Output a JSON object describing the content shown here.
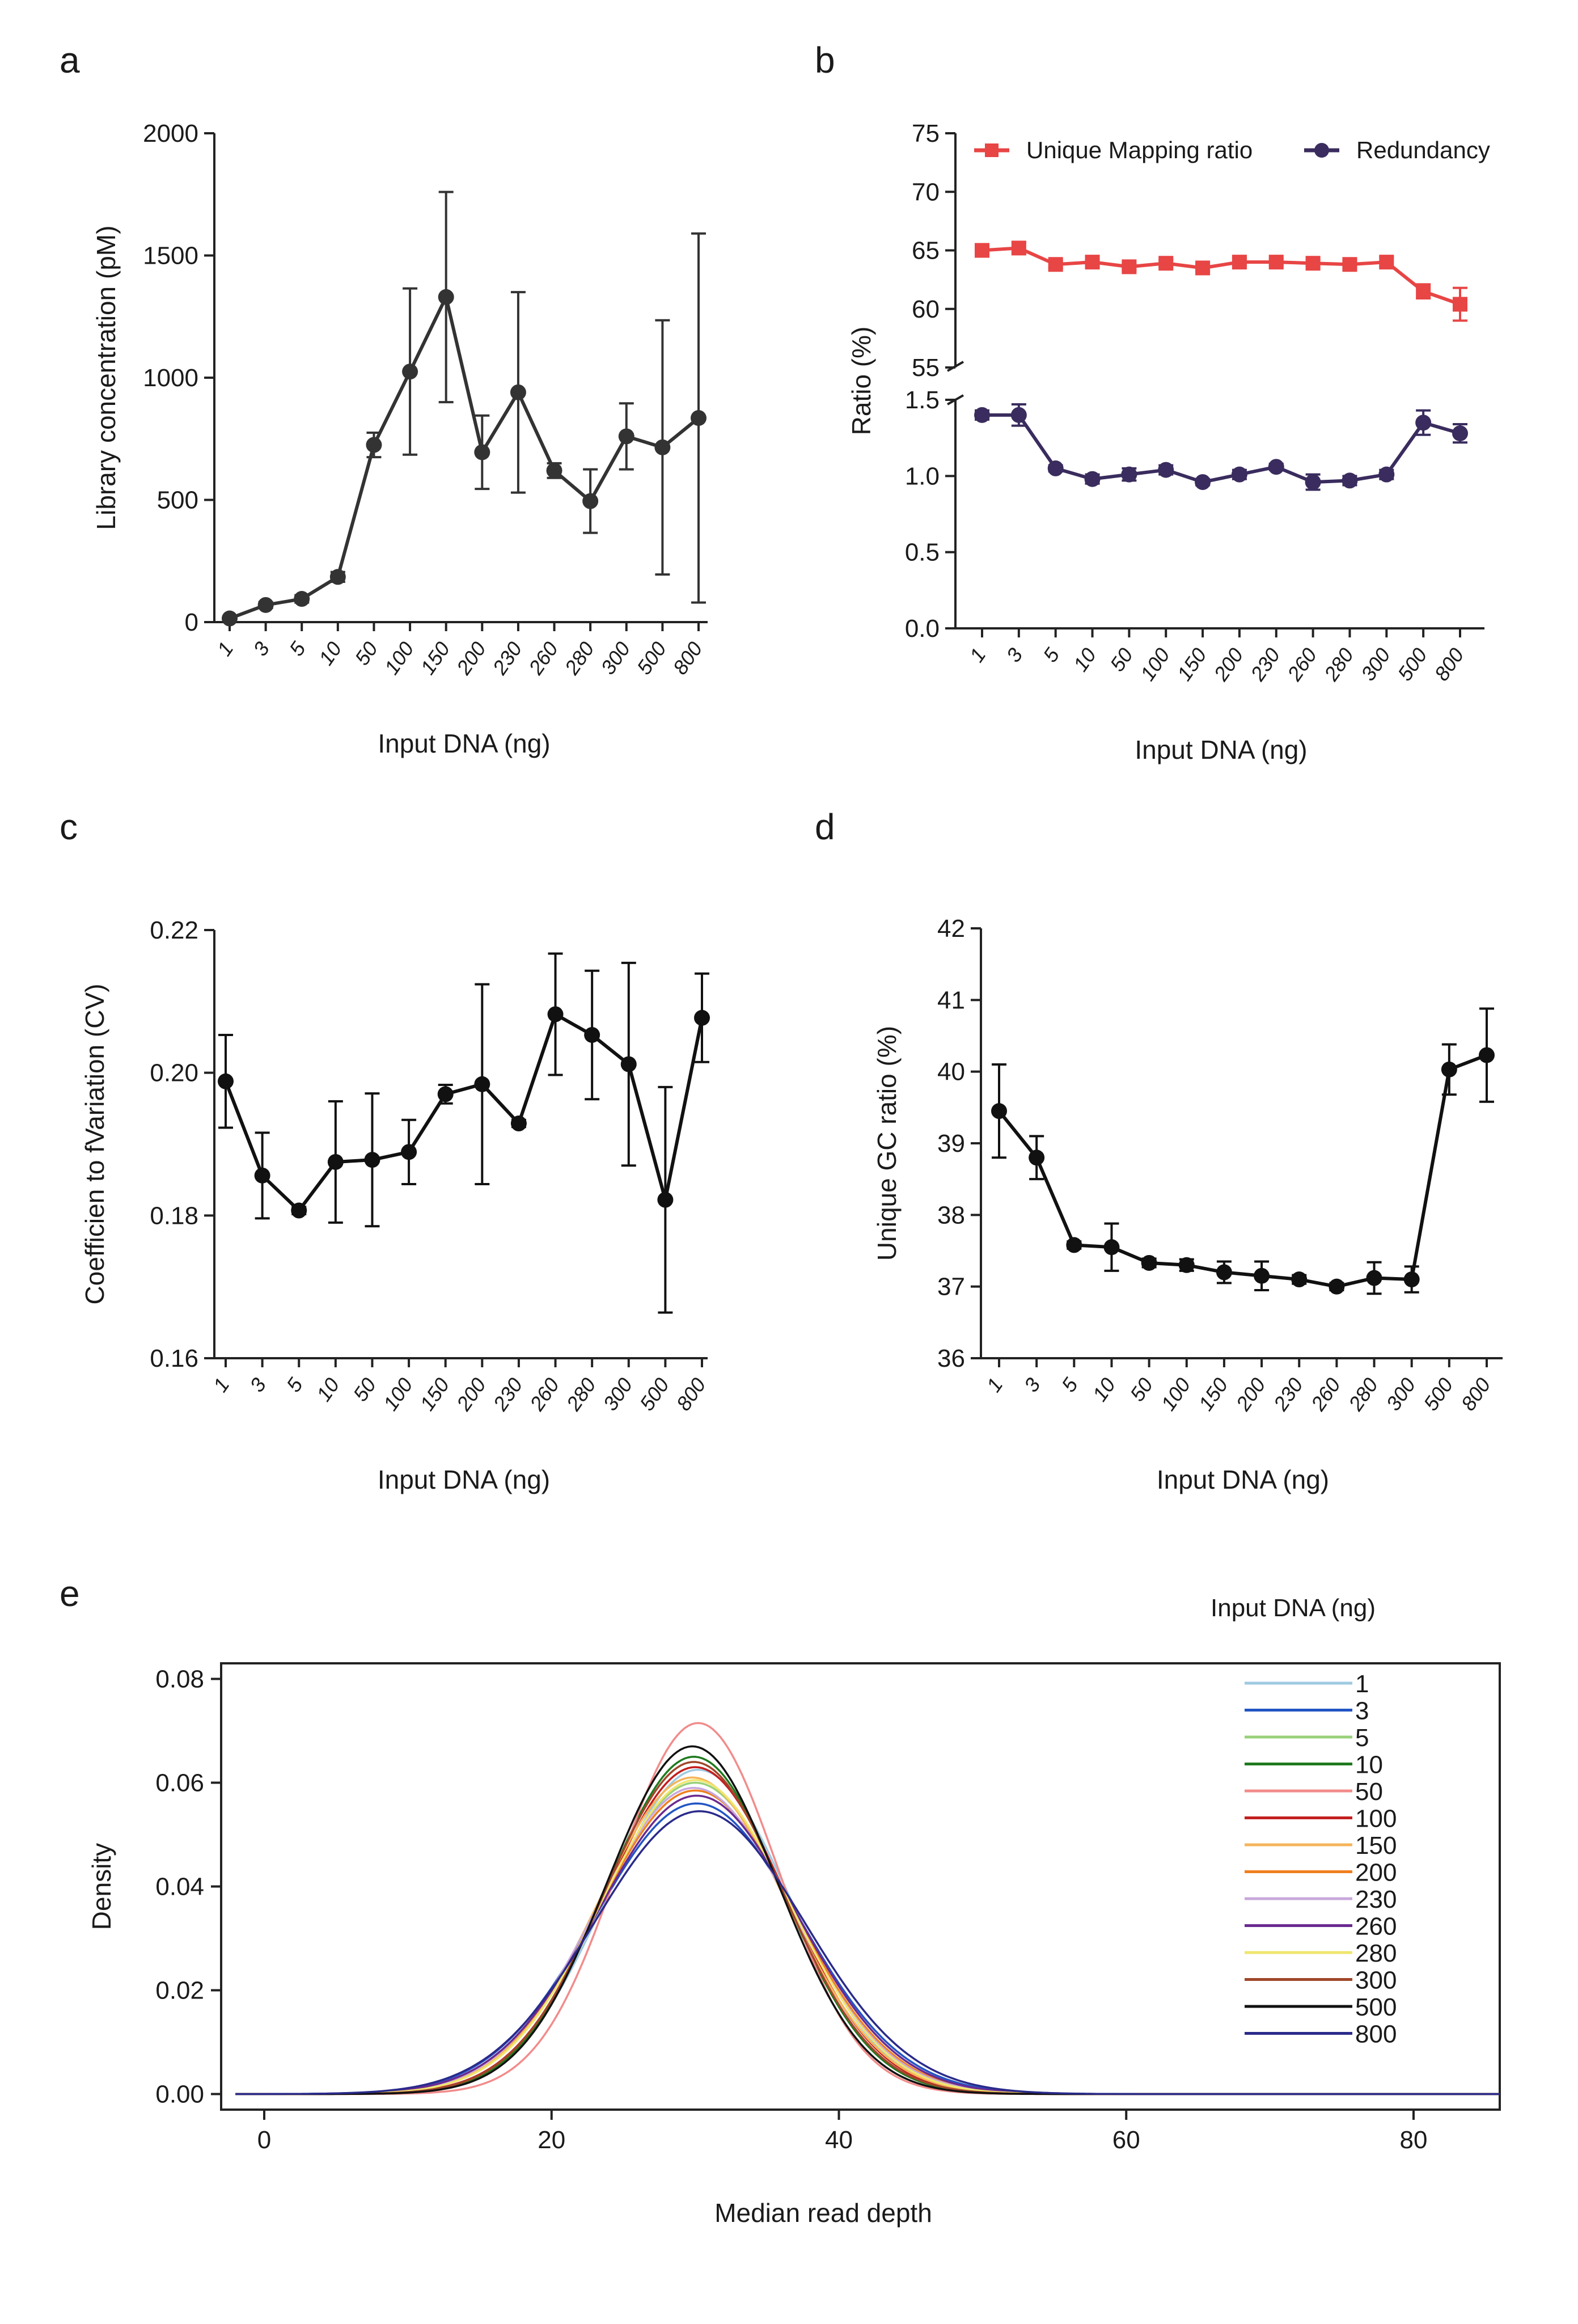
{
  "figure": {
    "panels": [
      "a",
      "b",
      "c",
      "d",
      "e"
    ]
  },
  "chart_data": [
    {
      "id": "a",
      "type": "line",
      "title": "",
      "xlabel": "Input DNA (ng)",
      "ylabel": "Library concentration (pM)",
      "categories": [
        "1",
        "3",
        "5",
        "10",
        "50",
        "100",
        "150",
        "200",
        "230",
        "260",
        "280",
        "300",
        "500",
        "800"
      ],
      "yticks": [
        "0",
        "500",
        "1000",
        "1500",
        "2000"
      ],
      "ylim": [
        0,
        2000
      ],
      "color": "#333333",
      "series": [
        {
          "name": "Library concentration",
          "values": [
            15,
            70,
            95,
            185,
            725,
            1025,
            1330,
            695,
            940,
            620,
            495,
            760,
            715,
            835
          ],
          "errors": [
            8,
            12,
            15,
            20,
            50,
            340,
            430,
            150,
            410,
            30,
            130,
            135,
            520,
            755
          ]
        }
      ]
    },
    {
      "id": "b",
      "type": "line",
      "title": "",
      "xlabel": "Input DNA (ng)",
      "ylabel": "Ratio (%)",
      "categories": [
        "1",
        "3",
        "5",
        "10",
        "50",
        "100",
        "150",
        "200",
        "230",
        "260",
        "280",
        "300",
        "500",
        "800"
      ],
      "upper_axis": {
        "ylim": [
          55,
          75
        ],
        "yticks": [
          "55",
          "60",
          "65",
          "70",
          "75"
        ]
      },
      "lower_axis": {
        "ylim": [
          0,
          1.5
        ],
        "yticks": [
          "0.0",
          "0.5",
          "1.0",
          "1.5"
        ]
      },
      "legend_position": "top",
      "series": [
        {
          "name": "Unique Mapping ratio",
          "color": "#e84545",
          "marker": "square",
          "axis": "upper",
          "values": [
            65.0,
            65.2,
            63.8,
            64.0,
            63.6,
            63.9,
            63.5,
            64.0,
            64.0,
            63.9,
            63.8,
            64.0,
            61.5,
            60.4
          ],
          "errors": [
            0.5,
            0.5,
            0.3,
            0.3,
            0.3,
            0.3,
            0.3,
            0.3,
            0.3,
            0.3,
            0.3,
            0.4,
            0.6,
            1.4
          ]
        },
        {
          "name": "Redundancy",
          "color": "#3a2c5e",
          "marker": "circle",
          "axis": "lower",
          "values": [
            1.4,
            1.4,
            1.05,
            0.98,
            1.01,
            1.04,
            0.96,
            1.01,
            1.06,
            0.96,
            0.97,
            1.01,
            1.35,
            1.28
          ],
          "errors": [
            0.03,
            0.07,
            0.02,
            0.03,
            0.04,
            0.03,
            0.02,
            0.03,
            0.02,
            0.05,
            0.03,
            0.03,
            0.08,
            0.06
          ]
        }
      ]
    },
    {
      "id": "c",
      "type": "line",
      "title": "",
      "xlabel": "Input DNA (ng)",
      "ylabel": "Coefficien to fVariation (CV)",
      "categories": [
        "1",
        "3",
        "5",
        "10",
        "50",
        "100",
        "150",
        "200",
        "230",
        "260",
        "280",
        "300",
        "500",
        "800"
      ],
      "yticks": [
        "0.16",
        "0.18",
        "0.20",
        "0.22"
      ],
      "ylim": [
        0.16,
        0.22
      ],
      "color": "#111111",
      "series": [
        {
          "name": "CV",
          "values": [
            0.1988,
            0.1856,
            0.1807,
            0.1875,
            0.1878,
            0.1889,
            0.197,
            0.1984,
            0.1929,
            0.2082,
            0.2053,
            0.2012,
            0.1822,
            0.2077
          ],
          "errors": [
            0.0065,
            0.006,
            0.0005,
            0.0085,
            0.0093,
            0.0045,
            0.0013,
            0.014,
            0.0005,
            0.0085,
            0.009,
            0.0142,
            0.0158,
            0.0062
          ]
        }
      ]
    },
    {
      "id": "d",
      "type": "line",
      "title": "",
      "xlabel": "Input DNA (ng)",
      "ylabel": "Unique GC ratio (%)",
      "categories": [
        "1",
        "3",
        "5",
        "10",
        "50",
        "100",
        "150",
        "200",
        "230",
        "260",
        "280",
        "300",
        "500",
        "800"
      ],
      "yticks": [
        "36",
        "37",
        "38",
        "39",
        "40",
        "41",
        "42"
      ],
      "ylim": [
        36,
        42
      ],
      "color": "#111111",
      "series": [
        {
          "name": "Unique GC ratio",
          "values": [
            39.45,
            38.8,
            37.58,
            37.55,
            37.33,
            37.3,
            37.2,
            37.15,
            37.1,
            37.0,
            37.12,
            37.1,
            40.03,
            40.23
          ],
          "errors": [
            0.65,
            0.3,
            0.05,
            0.33,
            0.06,
            0.08,
            0.15,
            0.2,
            0.06,
            0.05,
            0.22,
            0.18,
            0.35,
            0.65
          ]
        }
      ]
    },
    {
      "id": "e",
      "type": "line",
      "title": "",
      "xlabel": "Median read depth",
      "ylabel": "Density",
      "xlim": [
        -3,
        86
      ],
      "ylim": [
        -0.003,
        0.083
      ],
      "xticks": [
        "0",
        "20",
        "40",
        "60",
        "80"
      ],
      "yticks": [
        "0.00",
        "0.02",
        "0.04",
        "0.06",
        "0.08"
      ],
      "legend_title": "Input DNA (ng)",
      "legend_position": "top-right",
      "curve_range": [
        -2,
        86
      ],
      "series": [
        {
          "name": "1",
          "color": "#9ecae1",
          "peak": 0.0625,
          "mean": 30.2
        },
        {
          "name": "3",
          "color": "#2255c4",
          "peak": 0.056,
          "mean": 30.1
        },
        {
          "name": "5",
          "color": "#98d17a",
          "peak": 0.06,
          "mean": 30.0
        },
        {
          "name": "10",
          "color": "#1f7a1f",
          "peak": 0.065,
          "mean": 29.9
        },
        {
          "name": "50",
          "color": "#f28b8b",
          "peak": 0.0715,
          "mean": 30.2
        },
        {
          "name": "100",
          "color": "#c41e1e",
          "peak": 0.063,
          "mean": 30.0
        },
        {
          "name": "150",
          "color": "#f5b45a",
          "peak": 0.061,
          "mean": 29.8
        },
        {
          "name": "200",
          "color": "#f07f1e",
          "peak": 0.0585,
          "mean": 30.0
        },
        {
          "name": "230",
          "color": "#c8a8dc",
          "peak": 0.059,
          "mean": 29.9
        },
        {
          "name": "260",
          "color": "#6b2a8f",
          "peak": 0.0575,
          "mean": 30.1
        },
        {
          "name": "280",
          "color": "#f0e66e",
          "peak": 0.0605,
          "mean": 30.0
        },
        {
          "name": "300",
          "color": "#a0462a",
          "peak": 0.064,
          "mean": 29.9
        },
        {
          "name": "500",
          "color": "#111111",
          "peak": 0.067,
          "mean": 29.8
        },
        {
          "name": "800",
          "color": "#2a2a8a",
          "peak": 0.0545,
          "mean": 30.3
        }
      ]
    }
  ]
}
